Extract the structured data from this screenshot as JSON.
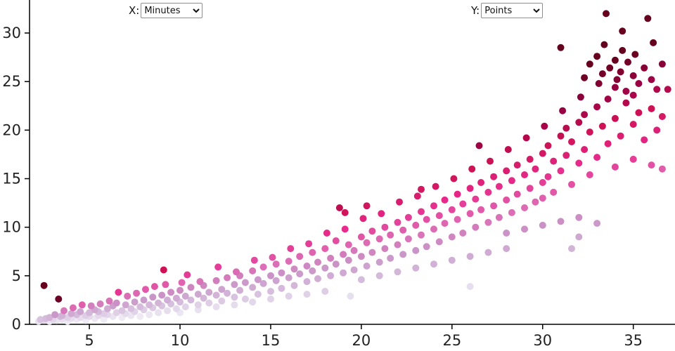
{
  "controls": {
    "x": {
      "label": "X:",
      "value": "Minutes"
    },
    "y": {
      "label": "Y:",
      "value": "Points"
    }
  },
  "chart_data": {
    "type": "scatter",
    "title": "",
    "xlabel": "Minutes",
    "ylabel": "Points",
    "x_axis": {
      "domain": [
        1.7,
        37.3
      ],
      "ticks": [
        5,
        10,
        15,
        20,
        25,
        30,
        35
      ]
    },
    "y_axis": {
      "domain": [
        0,
        33.4
      ],
      "ticks": [
        0,
        5,
        10,
        15,
        20,
        25,
        30
      ]
    },
    "grid": false,
    "legend": "none",
    "point_radius": 5,
    "axis_color": "#000000",
    "tick_label_color": "#222222",
    "color_scale": {
      "name": "PuRd",
      "maps_to": "points-per-minute-ratio",
      "ratio_domain": [
        0.05,
        0.8
      ],
      "stops": [
        "#f7f4f9",
        "#e7e1ef",
        "#d4b9da",
        "#c994c7",
        "#df65b0",
        "#e7298a",
        "#ce1256",
        "#980043",
        "#67001f"
      ]
    },
    "points": [
      [
        2.2,
        0.3
      ],
      [
        2.3,
        0.5
      ],
      [
        2.5,
        0.4
      ],
      [
        2.5,
        4.0
      ],
      [
        2.6,
        0.6
      ],
      [
        2.8,
        0.3
      ],
      [
        2.8,
        0.7
      ],
      [
        3.0,
        0.5
      ],
      [
        3.1,
        1.0
      ],
      [
        3.3,
        2.6
      ],
      [
        3.2,
        0.4
      ],
      [
        3.4,
        0.8
      ],
      [
        3.5,
        0.5
      ],
      [
        3.5,
        0.9
      ],
      [
        3.6,
        1.4
      ],
      [
        3.8,
        0.3
      ],
      [
        3.8,
        0.7
      ],
      [
        4.0,
        0.6
      ],
      [
        4.0,
        1.1
      ],
      [
        4.1,
        1.7
      ],
      [
        4.3,
        0.5
      ],
      [
        4.3,
        1.0
      ],
      [
        4.5,
        0.7
      ],
      [
        4.5,
        1.3
      ],
      [
        4.6,
        2.0
      ],
      [
        4.8,
        0.4
      ],
      [
        4.8,
        0.9
      ],
      [
        5.0,
        0.8
      ],
      [
        5.0,
        1.2
      ],
      [
        5.1,
        1.9
      ],
      [
        5.3,
        0.6
      ],
      [
        5.3,
        1.5
      ],
      [
        5.5,
        0.9
      ],
      [
        5.5,
        1.3
      ],
      [
        5.6,
        2.1
      ],
      [
        5.8,
        0.5
      ],
      [
        5.8,
        1.1
      ],
      [
        6.0,
        1.0
      ],
      [
        6.0,
        1.6
      ],
      [
        6.1,
        2.4
      ],
      [
        6.3,
        0.8
      ],
      [
        6.3,
        1.9
      ],
      [
        6.5,
        1.2
      ],
      [
        6.5,
        2.2
      ],
      [
        6.6,
        3.3
      ],
      [
        6.8,
        0.7
      ],
      [
        6.8,
        1.4
      ],
      [
        7.0,
        1.1
      ],
      [
        7.0,
        2.0
      ],
      [
        7.1,
        2.9
      ],
      [
        7.3,
        0.9
      ],
      [
        7.3,
        1.6
      ],
      [
        7.5,
        1.3
      ],
      [
        7.5,
        2.3
      ],
      [
        7.6,
        3.2
      ],
      [
        7.8,
        0.8
      ],
      [
        7.8,
        1.8
      ],
      [
        8.0,
        1.5
      ],
      [
        8.0,
        2.5
      ],
      [
        8.1,
        3.6
      ],
      [
        8.3,
        1.0
      ],
      [
        8.3,
        2.0
      ],
      [
        8.5,
        1.7
      ],
      [
        8.5,
        2.8
      ],
      [
        8.6,
        3.9
      ],
      [
        8.8,
        1.2
      ],
      [
        8.8,
        2.2
      ],
      [
        9.0,
        1.9
      ],
      [
        9.0,
        3.0
      ],
      [
        9.1,
        5.6
      ],
      [
        9.2,
        4.1
      ],
      [
        9.3,
        1.4
      ],
      [
        9.3,
        2.5
      ],
      [
        9.5,
        2.1
      ],
      [
        9.5,
        3.3
      ],
      [
        9.8,
        1.6
      ],
      [
        9.8,
        2.7
      ],
      [
        10.0,
        2.3
      ],
      [
        10.0,
        3.5
      ],
      [
        10.1,
        4.3
      ],
      [
        10.0,
        1.2
      ],
      [
        10.3,
        1.8
      ],
      [
        10.3,
        2.9
      ],
      [
        10.4,
        5.1
      ],
      [
        10.6,
        2.5
      ],
      [
        10.6,
        3.8
      ],
      [
        11.0,
        2.0
      ],
      [
        11.0,
        3.1
      ],
      [
        11.1,
        4.4
      ],
      [
        11.0,
        1.5
      ],
      [
        11.3,
        2.7
      ],
      [
        11.3,
        4.0
      ],
      [
        11.6,
        2.2
      ],
      [
        11.6,
        3.3
      ],
      [
        12.0,
        3.0
      ],
      [
        12.0,
        4.5
      ],
      [
        12.1,
        5.9
      ],
      [
        12.0,
        1.8
      ],
      [
        12.3,
        2.4
      ],
      [
        12.3,
        3.6
      ],
      [
        12.6,
        3.2
      ],
      [
        12.6,
        4.8
      ],
      [
        13.0,
        2.8
      ],
      [
        13.0,
        4.1
      ],
      [
        13.1,
        5.4
      ],
      [
        13.0,
        2.0
      ],
      [
        13.3,
        3.5
      ],
      [
        13.3,
        5.0
      ],
      [
        13.6,
        2.6
      ],
      [
        13.6,
        4.3
      ],
      [
        14.0,
        3.8
      ],
      [
        14.0,
        5.5
      ],
      [
        14.1,
        6.6
      ],
      [
        14.0,
        2.3
      ],
      [
        14.3,
        3.1
      ],
      [
        14.3,
        4.6
      ],
      [
        14.6,
        4.2
      ],
      [
        14.6,
        5.9
      ],
      [
        15.0,
        3.4
      ],
      [
        15.0,
        5.0
      ],
      [
        15.1,
        6.9
      ],
      [
        15.0,
        2.6
      ],
      [
        15.3,
        4.5
      ],
      [
        15.3,
        6.2
      ],
      [
        15.6,
        3.7
      ],
      [
        15.6,
        5.3
      ],
      [
        16.0,
        4.8
      ],
      [
        16.0,
        6.5
      ],
      [
        16.1,
        7.8
      ],
      [
        16.0,
        2.9
      ],
      [
        16.3,
        4.0
      ],
      [
        16.3,
        5.7
      ],
      [
        16.6,
        5.2
      ],
      [
        16.6,
        7.0
      ],
      [
        17.0,
        4.4
      ],
      [
        17.0,
        6.0
      ],
      [
        17.1,
        8.3
      ],
      [
        17.0,
        3.1
      ],
      [
        17.3,
        5.5
      ],
      [
        17.3,
        7.4
      ],
      [
        17.6,
        4.7
      ],
      [
        17.6,
        6.4
      ],
      [
        18.0,
        5.8
      ],
      [
        18.0,
        7.8
      ],
      [
        18.1,
        9.4
      ],
      [
        18.0,
        3.4
      ],
      [
        18.3,
        5.0
      ],
      [
        18.3,
        6.8
      ],
      [
        18.6,
        6.2
      ],
      [
        18.6,
        8.6
      ],
      [
        18.8,
        12.0
      ],
      [
        19.1,
        11.5
      ],
      [
        19.0,
        5.3
      ],
      [
        19.0,
        7.2
      ],
      [
        19.1,
        9.8
      ],
      [
        19.4,
        2.9
      ],
      [
        19.3,
        6.6
      ],
      [
        19.3,
        8.2
      ],
      [
        19.6,
        5.6
      ],
      [
        19.6,
        7.6
      ],
      [
        20.0,
        7.0
      ],
      [
        20.0,
        9.0
      ],
      [
        20.1,
        10.9
      ],
      [
        20.0,
        4.6
      ],
      [
        20.3,
        12.2
      ],
      [
        20.3,
        6.0
      ],
      [
        20.3,
        8.4
      ],
      [
        20.6,
        7.4
      ],
      [
        20.6,
        9.6
      ],
      [
        21.0,
        6.4
      ],
      [
        21.0,
        8.8
      ],
      [
        21.1,
        11.4
      ],
      [
        21.0,
        5.0
      ],
      [
        21.3,
        7.8
      ],
      [
        21.3,
        10.0
      ],
      [
        21.6,
        6.8
      ],
      [
        21.6,
        9.2
      ],
      [
        22.0,
        8.2
      ],
      [
        22.0,
        10.5
      ],
      [
        22.1,
        12.6
      ],
      [
        22.0,
        5.4
      ],
      [
        22.3,
        7.2
      ],
      [
        22.3,
        9.7
      ],
      [
        22.6,
        8.8
      ],
      [
        22.6,
        11.0
      ],
      [
        23.0,
        7.6
      ],
      [
        23.0,
        10.2
      ],
      [
        23.1,
        13.2
      ],
      [
        23.0,
        5.8
      ],
      [
        23.3,
        13.9
      ],
      [
        23.3,
        9.2
      ],
      [
        23.3,
        11.6
      ],
      [
        23.6,
        8.0
      ],
      [
        23.6,
        10.8
      ],
      [
        24.0,
        9.8
      ],
      [
        24.0,
        12.2
      ],
      [
        24.1,
        14.2
      ],
      [
        24.0,
        6.2
      ],
      [
        24.3,
        8.5
      ],
      [
        24.3,
        11.2
      ],
      [
        24.6,
        10.4
      ],
      [
        24.6,
        12.8
      ],
      [
        25.0,
        9.0
      ],
      [
        25.0,
        11.8
      ],
      [
        25.1,
        15.0
      ],
      [
        25.0,
        6.6
      ],
      [
        25.3,
        10.8
      ],
      [
        25.3,
        13.4
      ],
      [
        25.6,
        9.4
      ],
      [
        25.6,
        12.4
      ],
      [
        26.0,
        11.4
      ],
      [
        26.0,
        14.0
      ],
      [
        26.1,
        16.0
      ],
      [
        26.0,
        3.9
      ],
      [
        26.0,
        7.0
      ],
      [
        26.3,
        10.0
      ],
      [
        26.3,
        12.9
      ],
      [
        26.5,
        18.4
      ],
      [
        26.6,
        11.8
      ],
      [
        26.6,
        14.6
      ],
      [
        27.0,
        10.5
      ],
      [
        27.0,
        13.6
      ],
      [
        27.1,
        16.8
      ],
      [
        27.0,
        7.4
      ],
      [
        27.3,
        12.2
      ],
      [
        27.3,
        15.2
      ],
      [
        27.6,
        11.0
      ],
      [
        27.6,
        14.2
      ],
      [
        28.0,
        12.8
      ],
      [
        28.0,
        15.8
      ],
      [
        28.1,
        18.0
      ],
      [
        28.0,
        7.8
      ],
      [
        28.0,
        9.4
      ],
      [
        28.3,
        11.5
      ],
      [
        28.3,
        14.8
      ],
      [
        28.6,
        13.4
      ],
      [
        28.6,
        16.4
      ],
      [
        29.0,
        12.0
      ],
      [
        29.0,
        15.4
      ],
      [
        29.1,
        19.2
      ],
      [
        29.0,
        9.8
      ],
      [
        29.3,
        14.0
      ],
      [
        29.3,
        17.0
      ],
      [
        29.6,
        12.6
      ],
      [
        29.6,
        16.0
      ],
      [
        30.0,
        14.6
      ],
      [
        30.0,
        17.6
      ],
      [
        30.1,
        20.4
      ],
      [
        30.0,
        10.2
      ],
      [
        30.0,
        13.0
      ],
      [
        30.3,
        15.2
      ],
      [
        30.3,
        18.4
      ],
      [
        30.6,
        13.6
      ],
      [
        30.6,
        16.8
      ],
      [
        31.0,
        15.8
      ],
      [
        31.0,
        19.4
      ],
      [
        31.1,
        22.0
      ],
      [
        31.0,
        28.5
      ],
      [
        31.0,
        10.6
      ],
      [
        31.3,
        17.4
      ],
      [
        31.3,
        20.2
      ],
      [
        31.6,
        14.4
      ],
      [
        31.6,
        18.8
      ],
      [
        31.6,
        7.8
      ],
      [
        32.0,
        16.6
      ],
      [
        32.0,
        20.8
      ],
      [
        32.1,
        23.4
      ],
      [
        32.0,
        11.0
      ],
      [
        32.0,
        9.0
      ],
      [
        32.3,
        18.0
      ],
      [
        32.3,
        21.6
      ],
      [
        32.3,
        25.4
      ],
      [
        32.6,
        15.4
      ],
      [
        32.6,
        19.8
      ],
      [
        32.6,
        26.8
      ],
      [
        33.0,
        17.2
      ],
      [
        33.0,
        22.4
      ],
      [
        33.1,
        24.8
      ],
      [
        33.0,
        27.6
      ],
      [
        33.0,
        10.4
      ],
      [
        33.3,
        20.4
      ],
      [
        33.3,
        25.8
      ],
      [
        33.4,
        28.8
      ],
      [
        33.5,
        32.0
      ],
      [
        33.6,
        18.6
      ],
      [
        33.6,
        23.2
      ],
      [
        33.7,
        26.4
      ],
      [
        34.0,
        21.2
      ],
      [
        34.0,
        24.4
      ],
      [
        34.0,
        27.2
      ],
      [
        34.1,
        25.2
      ],
      [
        34.0,
        16.2
      ],
      [
        34.3,
        19.4
      ],
      [
        34.3,
        26.0
      ],
      [
        34.4,
        28.2
      ],
      [
        34.4,
        30.2
      ],
      [
        34.6,
        22.8
      ],
      [
        34.6,
        24.0
      ],
      [
        34.7,
        27.0
      ],
      [
        35.0,
        20.6
      ],
      [
        35.0,
        23.6
      ],
      [
        35.0,
        25.6
      ],
      [
        35.1,
        27.8
      ],
      [
        35.0,
        17.0
      ],
      [
        35.3,
        21.8
      ],
      [
        35.3,
        24.8
      ],
      [
        35.6,
        19.0
      ],
      [
        35.6,
        26.4
      ],
      [
        35.8,
        31.5
      ],
      [
        36.0,
        22.2
      ],
      [
        36.0,
        25.2
      ],
      [
        36.1,
        29.0
      ],
      [
        36.0,
        16.4
      ],
      [
        36.3,
        20.0
      ],
      [
        36.3,
        24.2
      ],
      [
        36.6,
        26.8
      ],
      [
        36.6,
        21.4
      ],
      [
        36.6,
        16.0
      ],
      [
        36.9,
        24.2
      ]
    ]
  }
}
